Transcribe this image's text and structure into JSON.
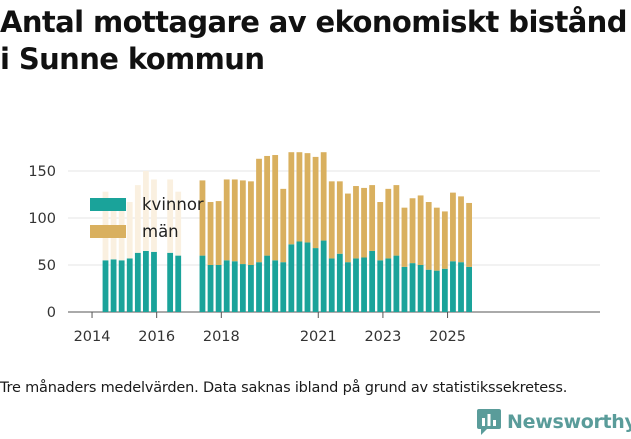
{
  "chart_data": {
    "type": "bar",
    "stacked": true,
    "title": "Antal mottagare av ekonomiskt bistånd i Sunne kommun",
    "xlabel": "",
    "ylabel": "",
    "ylim": [
      0,
      175
    ],
    "yticks": [
      0,
      50,
      100,
      150
    ],
    "xticks": [
      2014,
      2016,
      2018,
      2021,
      2023,
      2025
    ],
    "grid": true,
    "legend_position": "top-left",
    "series": [
      {
        "name": "kvinnor",
        "color": "#1aa39a",
        "values": [
          55,
          56,
          55,
          57,
          63,
          65,
          64,
          null,
          63,
          60,
          null,
          null,
          60,
          50,
          50,
          55,
          54,
          51,
          50,
          53,
          60,
          55,
          53,
          72,
          75,
          74,
          68,
          76,
          57,
          62,
          53,
          57,
          58,
          65,
          55,
          57,
          60,
          48,
          52,
          50,
          45,
          44,
          46,
          54,
          53,
          48
        ]
      },
      {
        "name": "män",
        "color": "#d9b05f",
        "values": [
          73,
          56,
          60,
          60,
          72,
          85,
          77,
          null,
          78,
          68,
          null,
          null,
          80,
          67,
          68,
          86,
          87,
          89,
          89,
          110,
          106,
          112,
          78,
          98,
          95,
          95,
          97,
          94,
          82,
          77,
          73,
          77,
          74,
          70,
          62,
          74,
          75,
          63,
          69,
          74,
          72,
          67,
          61,
          73,
          70,
          68
        ]
      }
    ],
    "faded_through_index": 9,
    "faded_colors": {
      "kvinnor": "#1aa39a",
      "män": "#faf0e0"
    }
  },
  "footnote": "Tre månaders medelvärden. Data saknas ibland på grund av statistikssekretess.",
  "brand": {
    "name": "Newsworthy",
    "icon": "newsworthy-logo-icon",
    "color": "#5a9c9a"
  }
}
